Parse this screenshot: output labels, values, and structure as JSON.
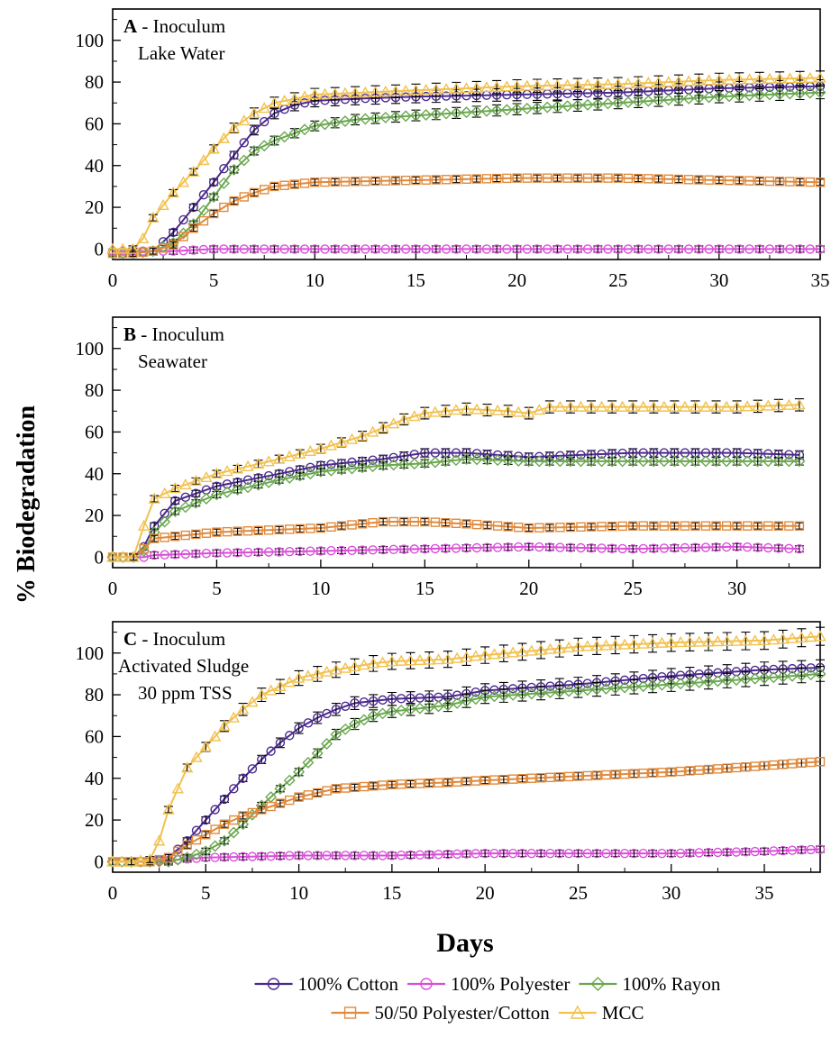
{
  "figure": {
    "ylabel": "% Biodegradation",
    "xlabel": "Days"
  },
  "legend": {
    "entries": [
      {
        "label": "100% Cotton",
        "color": "#4b2a8c",
        "marker": "circle"
      },
      {
        "label": "100% Polyester",
        "color": "#d94fd9",
        "marker": "circle"
      },
      {
        "label": "100% Rayon",
        "color": "#6aa84f",
        "marker": "diamond"
      },
      {
        "label": "50/50 Polyester/Cotton",
        "color": "#e08a3c",
        "marker": "square"
      },
      {
        "label": "MCC",
        "color": "#f2c14e",
        "marker": "triangle"
      }
    ]
  },
  "chart_data": [
    {
      "type": "line",
      "panel": "A",
      "title_letter": "A",
      "title_text": " - Inoculum",
      "subtitle": [
        "Lake Water"
      ],
      "xlim": [
        0,
        35
      ],
      "ylim": [
        -5,
        115
      ],
      "xticks": [
        0,
        5,
        10,
        15,
        20,
        25,
        30,
        35
      ],
      "yticks": [
        0,
        20,
        40,
        60,
        80,
        100
      ],
      "series": [
        {
          "name": "100% Cotton",
          "x": [
            0,
            1,
            2,
            3,
            4,
            5,
            6,
            7,
            8,
            9,
            10,
            12,
            15,
            20,
            25,
            30,
            35
          ],
          "y": [
            -2,
            -2,
            -1,
            8,
            20,
            32,
            45,
            57,
            65,
            69,
            71,
            72,
            73,
            74,
            75,
            77,
            78
          ]
        },
        {
          "name": "100% Polyester",
          "x": [
            0,
            1,
            2,
            3,
            5,
            10,
            15,
            20,
            25,
            30,
            35
          ],
          "y": [
            -1,
            -1,
            -1,
            -1,
            0,
            0,
            0,
            0,
            0,
            0,
            0
          ]
        },
        {
          "name": "100% Rayon",
          "x": [
            0,
            1,
            2,
            3,
            4,
            5,
            6,
            7,
            8,
            10,
            12,
            15,
            20,
            25,
            30,
            35
          ],
          "y": [
            -2,
            -2,
            -1,
            3,
            12,
            25,
            38,
            47,
            52,
            59,
            62,
            64,
            67,
            70,
            73,
            75
          ]
        },
        {
          "name": "50/50 Polyester/Cotton",
          "x": [
            0,
            1,
            2,
            3,
            4,
            5,
            6,
            7,
            8,
            10,
            15,
            20,
            25,
            30,
            35
          ],
          "y": [
            -2,
            -2,
            -1,
            2,
            10,
            17,
            23,
            27,
            30,
            32,
            33,
            34,
            34,
            33,
            32
          ]
        },
        {
          "name": "MCC",
          "x": [
            0,
            1,
            1.5,
            2,
            3,
            4,
            5,
            6,
            7,
            8,
            10,
            15,
            20,
            25,
            30,
            35
          ],
          "y": [
            0,
            0,
            5,
            15,
            27,
            37,
            48,
            58,
            65,
            70,
            74,
            76,
            78,
            79,
            81,
            82
          ]
        }
      ]
    },
    {
      "type": "line",
      "panel": "B",
      "title_letter": "B",
      "title_text": " - Inoculum",
      "subtitle": [
        "Seawater"
      ],
      "xlim": [
        0,
        34
      ],
      "ylim": [
        -5,
        115
      ],
      "xticks": [
        0,
        5,
        10,
        15,
        20,
        25,
        30
      ],
      "yticks": [
        0,
        20,
        40,
        60,
        80,
        100
      ],
      "series": [
        {
          "name": "100% Cotton",
          "x": [
            0,
            1,
            1.5,
            2,
            3,
            5,
            8,
            10,
            13,
            15,
            17,
            20,
            25,
            30,
            33
          ],
          "y": [
            0,
            0,
            5,
            15,
            27,
            34,
            40,
            44,
            47,
            50,
            50,
            48,
            50,
            50,
            49
          ]
        },
        {
          "name": "100% Polyester",
          "x": [
            0,
            1,
            1.5,
            2,
            5,
            10,
            15,
            20,
            25,
            30,
            33
          ],
          "y": [
            0,
            0,
            0,
            1,
            2,
            3,
            4,
            5,
            4,
            5,
            4
          ]
        },
        {
          "name": "100% Rayon",
          "x": [
            0,
            1,
            1.5,
            2,
            3,
            5,
            8,
            10,
            13,
            15,
            17,
            20,
            25,
            30,
            33
          ],
          "y": [
            0,
            0,
            3,
            12,
            22,
            30,
            37,
            41,
            44,
            45,
            47,
            46,
            46,
            46,
            46
          ]
        },
        {
          "name": "50/50 Polyester/Cotton",
          "x": [
            0,
            1,
            1.5,
            2,
            5,
            10,
            13,
            15,
            17,
            20,
            25,
            30,
            33
          ],
          "y": [
            0,
            0,
            4,
            9,
            12,
            14,
            17,
            17,
            16,
            14,
            15,
            15,
            15
          ]
        },
        {
          "name": "MCC",
          "x": [
            0,
            1,
            1.5,
            2,
            3,
            5,
            8,
            10,
            12,
            14,
            15,
            17,
            19,
            20,
            21,
            25,
            30,
            33
          ],
          "y": [
            0,
            0,
            15,
            28,
            33,
            40,
            47,
            52,
            58,
            66,
            69,
            71,
            70,
            69,
            72,
            72,
            72,
            73
          ]
        }
      ]
    },
    {
      "type": "line",
      "panel": "C",
      "title_letter": "C",
      "title_text": " - Inoculum",
      "subtitle": [
        "Activated Sludge",
        "30 ppm TSS"
      ],
      "xlim": [
        0,
        38
      ],
      "ylim": [
        -5,
        115
      ],
      "xticks": [
        0,
        5,
        10,
        15,
        20,
        25,
        30,
        35
      ],
      "yticks": [
        0,
        20,
        40,
        60,
        80,
        100
      ],
      "series": [
        {
          "name": "100% Cotton",
          "x": [
            0,
            1,
            2,
            3,
            4,
            5,
            6,
            7,
            8,
            9,
            10,
            11,
            12,
            13,
            14,
            15,
            18,
            20,
            25,
            30,
            35,
            38
          ],
          "y": [
            0,
            0,
            0,
            2,
            10,
            20,
            30,
            40,
            49,
            57,
            64,
            69,
            73,
            76,
            77,
            78,
            79,
            82,
            85,
            89,
            92,
            93
          ]
        },
        {
          "name": "100% Polyester",
          "x": [
            0,
            2,
            5,
            10,
            15,
            20,
            25,
            30,
            35,
            38
          ],
          "y": [
            0,
            0,
            2,
            3,
            3,
            4,
            4,
            4,
            5,
            6
          ]
        },
        {
          "name": "100% Rayon",
          "x": [
            0,
            1,
            2,
            3,
            4,
            5,
            6,
            7,
            8,
            9,
            10,
            11,
            12,
            13,
            14,
            15,
            18,
            20,
            25,
            30,
            35,
            38
          ],
          "y": [
            0,
            0,
            0,
            0,
            2,
            5,
            10,
            18,
            27,
            35,
            43,
            52,
            61,
            66,
            70,
            72,
            75,
            79,
            82,
            85,
            88,
            90
          ]
        },
        {
          "name": "50/50 Polyester/Cotton",
          "x": [
            0,
            1,
            2,
            3,
            4,
            5,
            6,
            7,
            8,
            9,
            10,
            12,
            15,
            18,
            20,
            25,
            30,
            35,
            38
          ],
          "y": [
            0,
            0,
            0,
            2,
            8,
            13,
            18,
            22,
            25,
            28,
            31,
            35,
            37,
            38,
            39,
            41,
            43,
            46,
            48
          ]
        },
        {
          "name": "MCC",
          "x": [
            0,
            1,
            2,
            2.5,
            3,
            4,
            5,
            6,
            7,
            8,
            9,
            10,
            12,
            14,
            15,
            18,
            20,
            25,
            30,
            35,
            38
          ],
          "y": [
            0,
            0,
            1,
            10,
            25,
            45,
            55,
            65,
            73,
            80,
            84,
            88,
            92,
            95,
            96,
            97,
            99,
            103,
            105,
            106,
            108
          ]
        }
      ]
    }
  ]
}
